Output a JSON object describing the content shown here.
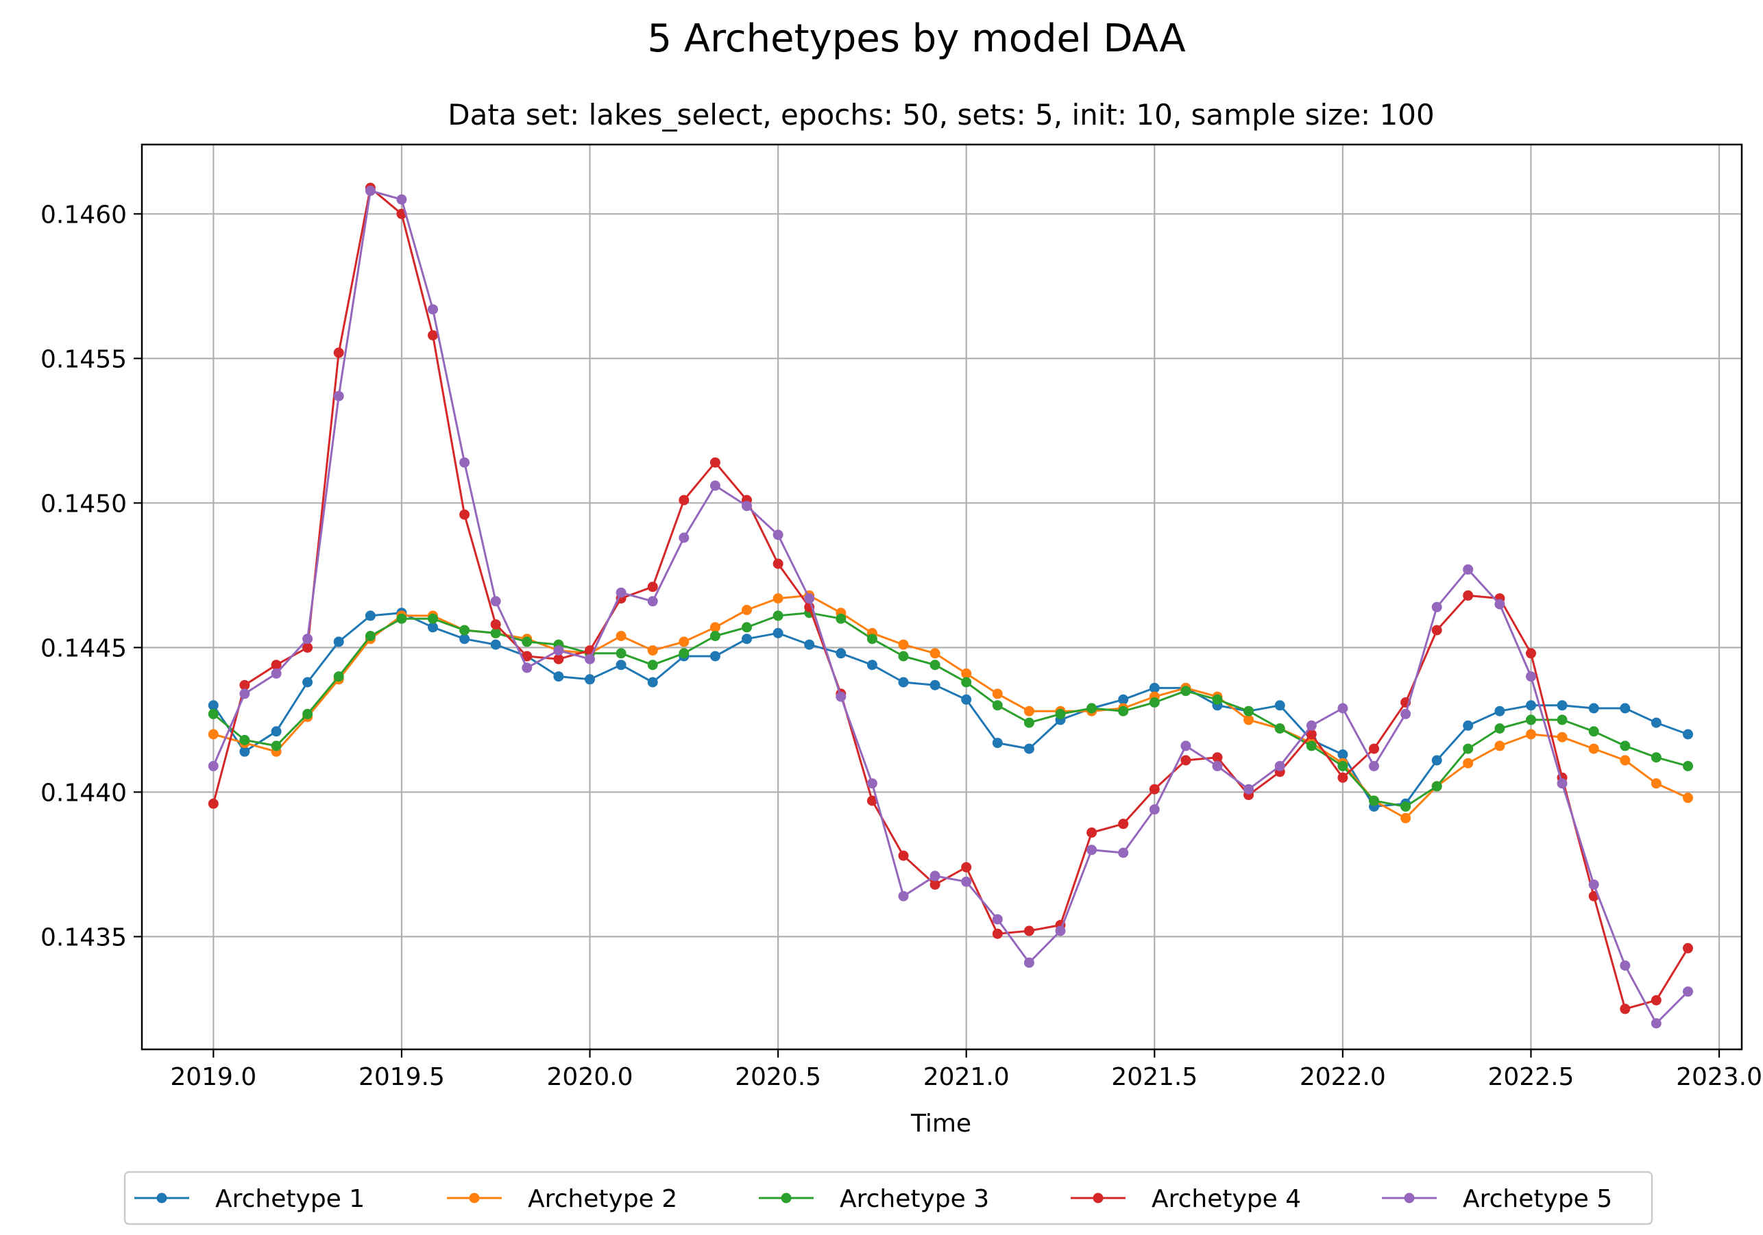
{
  "chart_data": {
    "type": "line",
    "title": "5 Archetypes by model DAA",
    "subtitle": "Data set: lakes_select, epochs: 50, sets: 5, init: 10, sample size: 100",
    "xlabel": "Time",
    "ylabel": "",
    "xlim": [
      2018.81,
      2023.06
    ],
    "ylim": [
      0.14311,
      0.14624
    ],
    "x_ticks": [
      2019.0,
      2019.5,
      2020.0,
      2020.5,
      2021.0,
      2021.5,
      2022.0,
      2022.5,
      2023.0
    ],
    "x_tick_labels": [
      "2019.0",
      "2019.5",
      "2020.0",
      "2020.5",
      "2021.0",
      "2021.5",
      "2022.0",
      "2022.5",
      "2023.0"
    ],
    "y_ticks": [
      0.1435,
      0.144,
      0.1445,
      0.145,
      0.1455,
      0.146
    ],
    "y_tick_labels": [
      "0.1435",
      "0.1440",
      "0.1445",
      "0.1450",
      "0.1455",
      "0.1460"
    ],
    "grid": true,
    "legend_placement": "bottom-center",
    "x": [
      2019.0,
      2019.083,
      2019.167,
      2019.25,
      2019.333,
      2019.417,
      2019.5,
      2019.583,
      2019.667,
      2019.75,
      2019.833,
      2019.917,
      2020.0,
      2020.083,
      2020.167,
      2020.25,
      2020.333,
      2020.417,
      2020.5,
      2020.583,
      2020.667,
      2020.75,
      2020.833,
      2020.917,
      2021.0,
      2021.083,
      2021.167,
      2021.25,
      2021.333,
      2021.417,
      2021.5,
      2021.583,
      2021.667,
      2021.75,
      2021.833,
      2021.917,
      2022.0,
      2022.083,
      2022.167,
      2022.25,
      2022.333,
      2022.417,
      2022.5,
      2022.583,
      2022.667,
      2022.75,
      2022.833,
      2022.917
    ],
    "series": [
      {
        "name": "Archetype 1",
        "color": "#1f77b4",
        "values": [
          0.1443,
          0.14414,
          0.14421,
          0.14438,
          0.14452,
          0.14461,
          0.14462,
          0.14457,
          0.14453,
          0.14451,
          0.14447,
          0.1444,
          0.14439,
          0.14444,
          0.14438,
          0.14447,
          0.14447,
          0.14453,
          0.14455,
          0.14451,
          0.14448,
          0.14444,
          0.14438,
          0.14437,
          0.14432,
          0.14417,
          0.14415,
          0.14425,
          0.14429,
          0.14432,
          0.14436,
          0.14436,
          0.1443,
          0.14428,
          0.1443,
          0.14418,
          0.14413,
          0.14395,
          0.14396,
          0.14411,
          0.14423,
          0.14428,
          0.1443,
          0.1443,
          0.14429,
          0.14429,
          0.14424,
          0.1442
        ]
      },
      {
        "name": "Archetype 2",
        "color": "#ff7f0e",
        "values": [
          0.1442,
          0.14417,
          0.14414,
          0.14426,
          0.14439,
          0.14453,
          0.14461,
          0.14461,
          0.14456,
          0.14455,
          0.14453,
          0.14449,
          0.14448,
          0.14454,
          0.14449,
          0.14452,
          0.14457,
          0.14463,
          0.14467,
          0.14468,
          0.14462,
          0.14455,
          0.14451,
          0.14448,
          0.14441,
          0.14434,
          0.14428,
          0.14428,
          0.14428,
          0.14429,
          0.14433,
          0.14436,
          0.14433,
          0.14425,
          0.14422,
          0.14417,
          0.1441,
          0.14397,
          0.14391,
          0.14402,
          0.1441,
          0.14416,
          0.1442,
          0.14419,
          0.14415,
          0.14411,
          0.14403,
          0.14398
        ]
      },
      {
        "name": "Archetype 3",
        "color": "#2ca02c",
        "values": [
          0.14427,
          0.14418,
          0.14416,
          0.14427,
          0.1444,
          0.14454,
          0.1446,
          0.1446,
          0.14456,
          0.14455,
          0.14452,
          0.14451,
          0.14448,
          0.14448,
          0.14444,
          0.14448,
          0.14454,
          0.14457,
          0.14461,
          0.14462,
          0.1446,
          0.14453,
          0.14447,
          0.14444,
          0.14438,
          0.1443,
          0.14424,
          0.14427,
          0.14429,
          0.14428,
          0.14431,
          0.14435,
          0.14432,
          0.14428,
          0.14422,
          0.14416,
          0.14409,
          0.14397,
          0.14395,
          0.14402,
          0.14415,
          0.14422,
          0.14425,
          0.14425,
          0.14421,
          0.14416,
          0.14412,
          0.14409
        ]
      },
      {
        "name": "Archetype 4",
        "color": "#d62728",
        "values": [
          0.14396,
          0.14437,
          0.14444,
          0.1445,
          0.14552,
          0.14609,
          0.146,
          0.14558,
          0.14496,
          0.14458,
          0.14447,
          0.14446,
          0.14449,
          0.14467,
          0.14471,
          0.14501,
          0.14514,
          0.14501,
          0.14479,
          0.14464,
          0.14434,
          0.14397,
          0.14378,
          0.14368,
          0.14374,
          0.14351,
          0.14352,
          0.14354,
          0.14386,
          0.14389,
          0.14401,
          0.14411,
          0.14412,
          0.14399,
          0.14407,
          0.1442,
          0.14405,
          0.14415,
          0.14431,
          0.14456,
          0.14468,
          0.14467,
          0.14448,
          0.14405,
          0.14364,
          0.14325,
          0.14328,
          0.14346
        ]
      },
      {
        "name": "Archetype 5",
        "color": "#9467bd",
        "values": [
          0.14409,
          0.14434,
          0.14441,
          0.14453,
          0.14537,
          0.14608,
          0.14605,
          0.14567,
          0.14514,
          0.14466,
          0.14443,
          0.14449,
          0.14446,
          0.14469,
          0.14466,
          0.14488,
          0.14506,
          0.14499,
          0.14489,
          0.14467,
          0.14433,
          0.14403,
          0.14364,
          0.14371,
          0.14369,
          0.14356,
          0.14341,
          0.14352,
          0.1438,
          0.14379,
          0.14394,
          0.14416,
          0.14409,
          0.14401,
          0.14409,
          0.14423,
          0.14429,
          0.14409,
          0.14427,
          0.14464,
          0.14477,
          0.14465,
          0.1444,
          0.14403,
          0.14368,
          0.1434,
          0.1432,
          0.14331
        ]
      }
    ]
  }
}
